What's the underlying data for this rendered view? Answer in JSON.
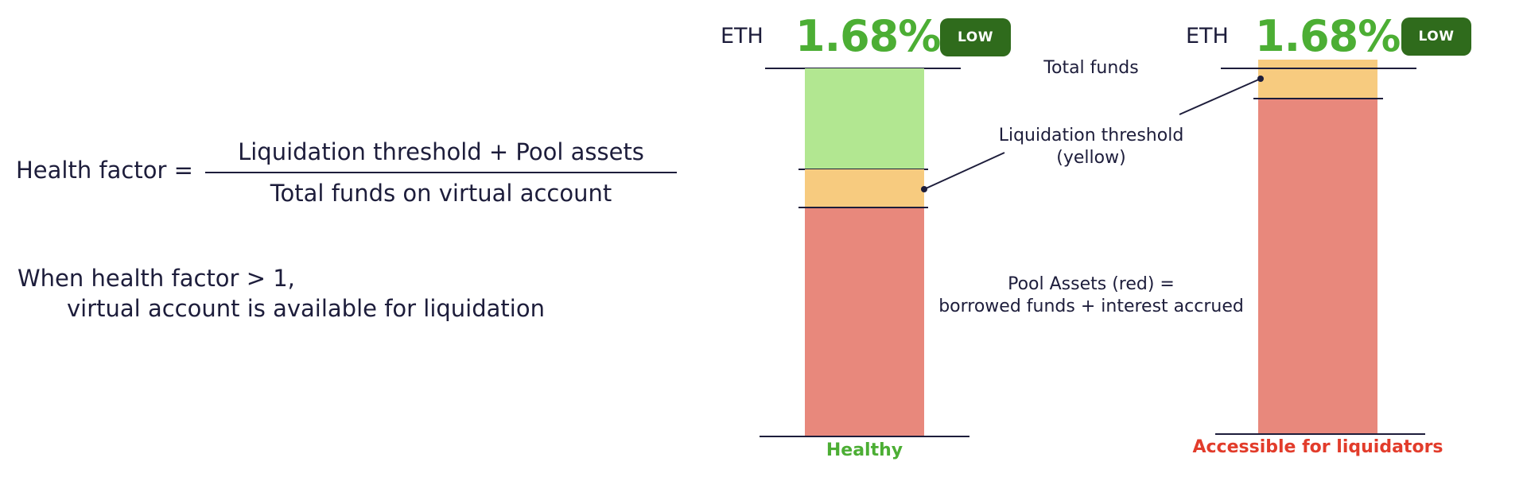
{
  "formula": {
    "lhs": "Health factor =",
    "numerator": "Liquidation threshold + Pool assets",
    "denominator": "Total funds on virtual account"
  },
  "condition": {
    "line1": "When health factor > 1,",
    "line2": "virtual account is available for liquidation"
  },
  "columns": [
    {
      "asset": "ETH",
      "rate": "1.68%",
      "badge": "LOW",
      "status": "Healthy",
      "status_color": "#4cae34"
    },
    {
      "asset": "ETH",
      "rate": "1.68%",
      "badge": "LOW",
      "status": "Accessible for liquidators",
      "status_color": "#e23c2b"
    }
  ],
  "annotations": {
    "total_funds": "Total funds",
    "liquidation_threshold_line1": "Liquidation threshold",
    "liquidation_threshold_line2": "(yellow)",
    "pool_assets_line1": "Pool Assets (red) =",
    "pool_assets_line2": "borrowed funds + interest accrued"
  },
  "colors": {
    "text": "#1d1d3b",
    "rate_green": "#4cae34",
    "badge_green": "#2f6b1c",
    "segment_free": "#b2e791",
    "segment_threshold": "#f7cb7f",
    "segment_pool": "#e8887c"
  }
}
